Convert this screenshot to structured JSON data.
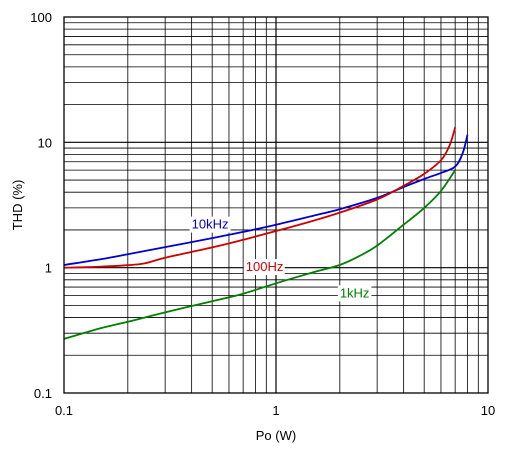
{
  "chart_data": {
    "type": "line",
    "x_scale": "log",
    "y_scale": "log",
    "xlim": [
      0.1,
      10
    ],
    "ylim": [
      0.1,
      100
    ],
    "xlabel": "Po (W)",
    "ylabel": "THD (%)",
    "grid": true,
    "x_ticks": [
      {
        "value": 0.1,
        "label": "0.1"
      },
      {
        "value": 1,
        "label": "1"
      },
      {
        "value": 10,
        "label": "10"
      }
    ],
    "y_ticks": [
      {
        "value": 0.1,
        "label": "0.1"
      },
      {
        "value": 1,
        "label": "1"
      },
      {
        "value": 10,
        "label": "10"
      },
      {
        "value": 100,
        "label": "100"
      }
    ],
    "series": [
      {
        "name": "10kHz",
        "color": "#0000cc",
        "label_at": [
          0.4,
          2.05
        ],
        "points": [
          [
            0.1,
            1.05
          ],
          [
            0.15,
            1.17
          ],
          [
            0.2,
            1.28
          ],
          [
            0.3,
            1.46
          ],
          [
            0.5,
            1.72
          ],
          [
            0.7,
            1.93
          ],
          [
            1.0,
            2.2
          ],
          [
            1.5,
            2.6
          ],
          [
            2.0,
            2.93
          ],
          [
            3.0,
            3.6
          ],
          [
            4.0,
            4.4
          ],
          [
            5.0,
            5.1
          ],
          [
            6.0,
            5.7
          ],
          [
            7.0,
            6.4
          ],
          [
            7.6,
            8.2
          ],
          [
            8.0,
            11.5
          ]
        ]
      },
      {
        "name": "100Hz",
        "color": "#cc0000",
        "label_at": [
          0.72,
          0.94
        ],
        "points": [
          [
            0.1,
            1.0
          ],
          [
            0.15,
            1.02
          ],
          [
            0.23,
            1.07
          ],
          [
            0.3,
            1.2
          ],
          [
            0.5,
            1.45
          ],
          [
            0.7,
            1.67
          ],
          [
            1.0,
            1.96
          ],
          [
            1.5,
            2.37
          ],
          [
            2.0,
            2.75
          ],
          [
            3.0,
            3.5
          ],
          [
            4.0,
            4.5
          ],
          [
            5.0,
            5.6
          ],
          [
            6.0,
            7.2
          ],
          [
            6.6,
            9.5
          ],
          [
            7.0,
            13.2
          ]
        ]
      },
      {
        "name": "1kHz",
        "color": "#008000",
        "label_at": [
          2.0,
          0.58
        ],
        "points": [
          [
            0.1,
            0.27
          ],
          [
            0.15,
            0.33
          ],
          [
            0.2,
            0.37
          ],
          [
            0.3,
            0.44
          ],
          [
            0.5,
            0.54
          ],
          [
            0.7,
            0.62
          ],
          [
            1.0,
            0.75
          ],
          [
            1.5,
            0.92
          ],
          [
            2.0,
            1.05
          ],
          [
            2.5,
            1.25
          ],
          [
            3.0,
            1.5
          ],
          [
            4.0,
            2.2
          ],
          [
            5.0,
            3.0
          ],
          [
            6.0,
            4.1
          ],
          [
            7.0,
            6.0
          ]
        ]
      }
    ]
  }
}
